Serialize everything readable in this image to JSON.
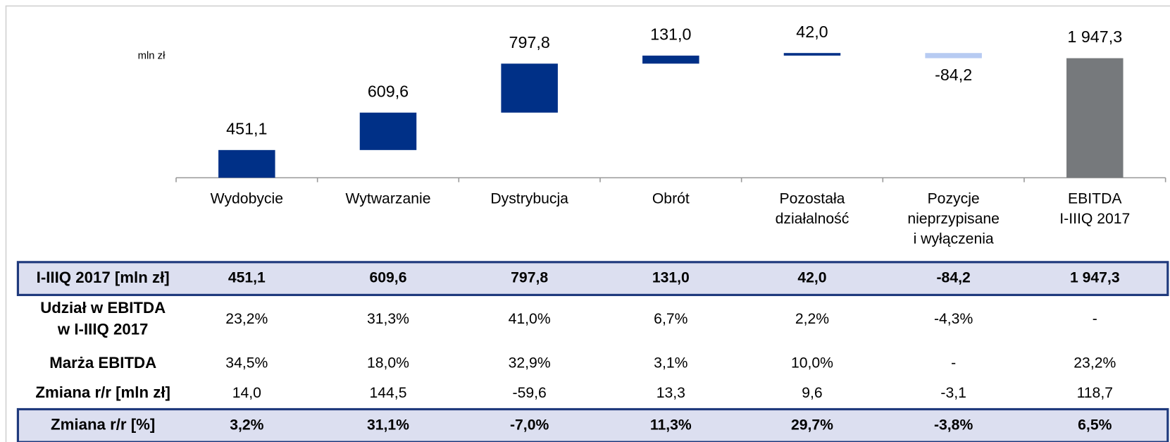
{
  "chart_data": {
    "type": "waterfall",
    "unit_label": "mln zł",
    "categories": [
      [
        "Wydobycie"
      ],
      [
        "Wytwarzanie"
      ],
      [
        "Dystrybucja"
      ],
      [
        "Obrót"
      ],
      [
        "Pozostała",
        "działalność"
      ],
      [
        "Pozycje",
        "nieprzypisane",
        "i wyłączenia"
      ],
      [
        "EBITDA",
        "I-IIIQ 2017"
      ]
    ],
    "values": [
      451.1,
      609.6,
      797.8,
      131.0,
      42.0,
      -84.2,
      1947.3
    ],
    "value_labels": [
      "451,1",
      "609,6",
      "797,8",
      "131,0",
      "42,0",
      "-84,2",
      "1 947,3"
    ],
    "is_total": [
      false,
      false,
      false,
      false,
      false,
      false,
      true
    ],
    "colors": {
      "increase": "#003087",
      "decrease": "#b7cbf2",
      "total": "#76797c"
    }
  },
  "table": {
    "rows": [
      {
        "label": [
          "I-IIIQ 2017 [mln zł]"
        ],
        "highlight": true,
        "cells": [
          "451,1",
          "609,6",
          "797,8",
          "131,0",
          "42,0",
          "-84,2",
          "1 947,3"
        ]
      },
      {
        "label": [
          "Udział w EBITDA",
          "w I-IIIQ 2017"
        ],
        "highlight": false,
        "cells": [
          "23,2%",
          "31,3%",
          "41,0%",
          "6,7%",
          "2,2%",
          "-4,3%",
          "-"
        ]
      },
      {
        "label": [
          "Marża EBITDA"
        ],
        "highlight": false,
        "cells": [
          "34,5%",
          "18,0%",
          "32,9%",
          "3,1%",
          "10,0%",
          "-",
          "23,2%"
        ]
      },
      {
        "label": [
          "Zmiana r/r [mln zł]"
        ],
        "highlight": false,
        "cells": [
          "14,0",
          "144,5",
          "-59,6",
          "13,3",
          "9,6",
          "-3,1",
          "118,7"
        ]
      },
      {
        "label": [
          "Zmiana r/r [%]"
        ],
        "highlight": true,
        "cells": [
          "3,2%",
          "31,1%",
          "-7,0%",
          "11,3%",
          "29,7%",
          "-3,8%",
          "6,5%"
        ]
      }
    ]
  }
}
